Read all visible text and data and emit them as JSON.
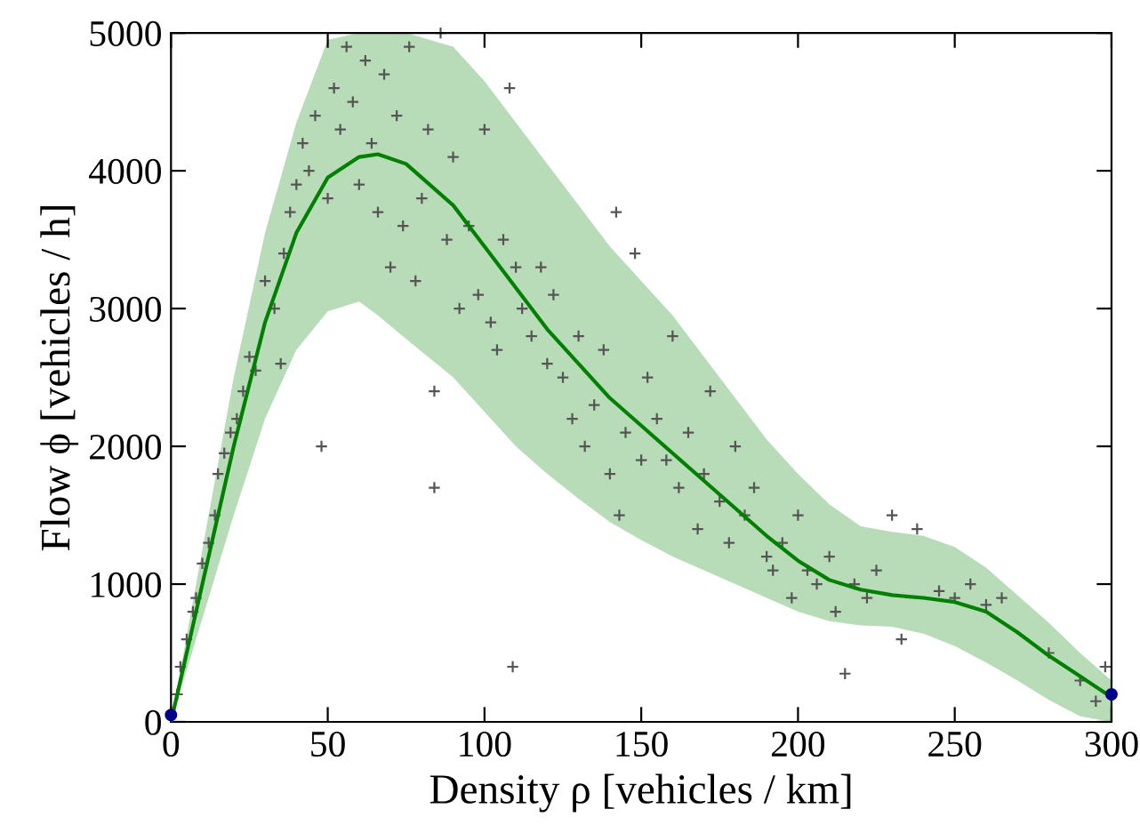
{
  "chart_data": {
    "type": "scatter",
    "xlabel": "Density ρ [vehicles / km]",
    "ylabel": "Flow ϕ [vehicles / h]",
    "xlim": [
      0,
      300
    ],
    "ylim": [
      0,
      5000
    ],
    "xticks": [
      0,
      50,
      100,
      150,
      200,
      250,
      300
    ],
    "yticks": [
      0,
      1000,
      2000,
      3000,
      4000,
      5000
    ],
    "grid": false,
    "legend": false,
    "series": [
      {
        "type": "line",
        "color": "#008000",
        "marker": "none",
        "x": [
          0,
          10,
          20,
          30,
          40,
          50,
          60,
          66,
          75,
          90,
          100,
          110,
          120,
          130,
          140,
          150,
          160,
          170,
          180,
          190,
          200,
          210,
          220,
          230,
          240,
          250,
          260,
          270,
          280,
          290,
          300
        ],
        "values": [
          0,
          1000,
          2000,
          2900,
          3550,
          3950,
          4100,
          4120,
          4050,
          3750,
          3450,
          3150,
          2850,
          2600,
          2350,
          2150,
          1950,
          1750,
          1550,
          1350,
          1170,
          1030,
          960,
          920,
          900,
          870,
          800,
          650,
          480,
          330,
          180
        ],
        "lower": [
          0,
          750,
          1500,
          2200,
          2700,
          2980,
          3050,
          2950,
          2780,
          2500,
          2250,
          2000,
          1800,
          1620,
          1450,
          1320,
          1200,
          1100,
          1000,
          900,
          800,
          730,
          700,
          690,
          640,
          550,
          430,
          300,
          160,
          40,
          0
        ],
        "upper": [
          0,
          1250,
          2500,
          3550,
          4350,
          4950,
          5000,
          5000,
          5000,
          4900,
          4650,
          4350,
          4050,
          3750,
          3450,
          3200,
          2950,
          2650,
          2350,
          2050,
          1800,
          1580,
          1420,
          1380,
          1350,
          1270,
          1120,
          920,
          720,
          500,
          300
        ]
      },
      {
        "color": "#555555",
        "marker": "cross",
        "x": [
          2,
          3,
          5,
          7,
          8,
          10,
          12,
          14,
          15,
          17,
          19,
          21,
          23,
          25,
          27,
          30,
          33,
          35,
          36,
          38,
          40,
          42,
          44,
          46,
          48,
          50,
          52,
          54,
          56,
          58,
          60,
          62,
          64,
          66,
          68,
          70,
          72,
          74,
          76,
          78,
          80,
          82,
          84,
          84,
          86,
          88,
          90,
          92,
          95,
          98,
          100,
          102,
          104,
          106,
          108,
          109,
          110,
          112,
          115,
          118,
          120,
          122,
          125,
          128,
          130,
          132,
          135,
          138,
          140,
          142,
          143,
          145,
          148,
          150,
          152,
          155,
          158,
          160,
          162,
          165,
          168,
          170,
          172,
          175,
          178,
          180,
          183,
          186,
          190,
          192,
          195,
          198,
          200,
          203,
          206,
          210,
          212,
          215,
          218,
          222,
          225,
          230,
          233,
          238,
          245,
          250,
          255,
          260,
          265,
          280,
          290,
          295,
          298
        ],
        "values": [
          200,
          400,
          600,
          800,
          900,
          1150,
          1300,
          1500,
          1800,
          1950,
          2100,
          2200,
          2400,
          2650,
          2550,
          3200,
          3000,
          2600,
          3400,
          3700,
          3900,
          4200,
          4000,
          4400,
          2000,
          3800,
          4600,
          4300,
          4900,
          4500,
          3900,
          4800,
          4200,
          3700,
          4700,
          3300,
          4400,
          3600,
          4900,
          3200,
          3800,
          4300,
          2400,
          1700,
          5000,
          3500,
          4100,
          3000,
          3600,
          3100,
          4300,
          2900,
          2700,
          3500,
          4600,
          400,
          3300,
          3000,
          2800,
          3300,
          2600,
          3100,
          2500,
          2200,
          2800,
          2000,
          2300,
          2700,
          1800,
          3700,
          1500,
          2100,
          3400,
          1900,
          2500,
          2200,
          1900,
          2800,
          1700,
          2100,
          1400,
          1800,
          2400,
          1600,
          1300,
          2000,
          1500,
          1700,
          1200,
          1100,
          1300,
          900,
          1500,
          1100,
          1000,
          1200,
          800,
          350,
          1000,
          900,
          1100,
          1500,
          600,
          1400,
          950,
          900,
          1000,
          850,
          900,
          500,
          300,
          150,
          400
        ]
      },
      {
        "color": "#00008b",
        "marker": "circle",
        "x": [
          0,
          300
        ],
        "values": [
          50,
          200
        ]
      }
    ]
  }
}
